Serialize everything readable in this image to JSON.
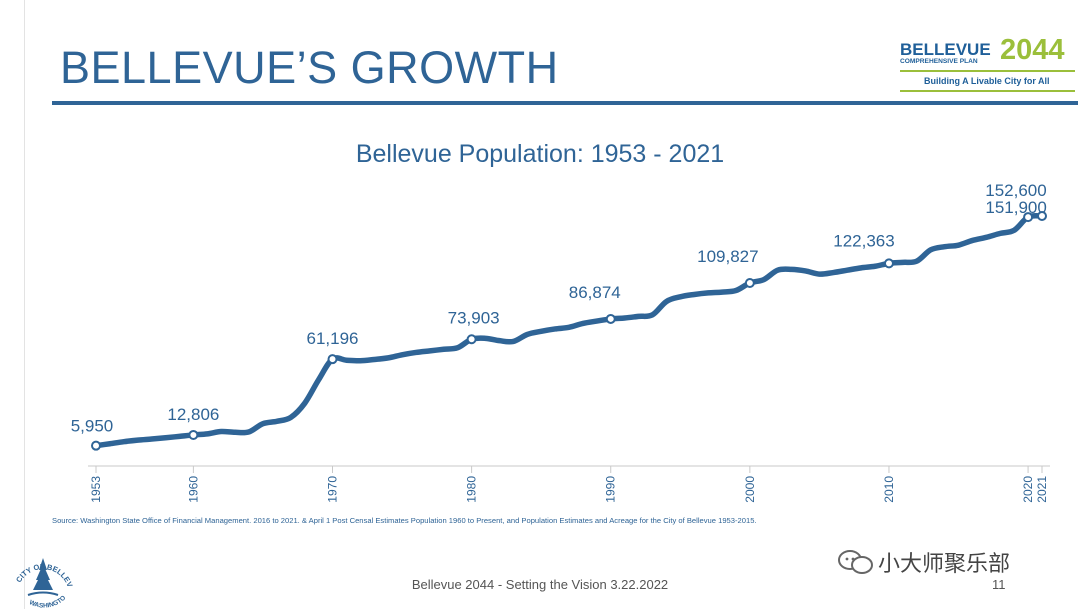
{
  "slide": {
    "title": "BELLEVUE’S GROWTH",
    "footer": "Bellevue 2044 - Setting the Vision 3.22.2022",
    "page_number": "11",
    "watermark": "小大师聚乐部"
  },
  "logo": {
    "name": "BELLEVUE",
    "year": "2044",
    "subtitle": "COMPREHENSIVE PLAN",
    "tagline": "Building A Livable City for All"
  },
  "seal": {
    "text_top": "CITY OF BELLEVUE",
    "text_bottom": "WASHINGTON"
  },
  "source_note": "Source: Washington State Office of Financial Management. 2016 to 2021. & April 1 Post Censal Estimates Population 1960 to Present, and Population Estimates and Acreage for the City of Bellevue 1953-2015.",
  "colors": {
    "primary": "#2f6496",
    "accent": "#9bbf3b",
    "text": "#555555"
  },
  "chart_data": {
    "type": "line",
    "title": "Bellevue Population: 1953 - 2021",
    "xlabel": "",
    "ylabel": "",
    "xlim": [
      1953,
      2021
    ],
    "ylim": [
      0,
      160000
    ],
    "x_ticks": [
      1953,
      1960,
      1970,
      1980,
      1990,
      2000,
      2010,
      2020,
      2021
    ],
    "grid": false,
    "series": [
      {
        "color": "#2f6496",
        "x": [
          1953,
          1954,
          1955,
          1956,
          1957,
          1958,
          1959,
          1960,
          1961,
          1962,
          1963,
          1964,
          1965,
          1966,
          1967,
          1968,
          1969,
          1970,
          1971,
          1972,
          1973,
          1974,
          1975,
          1976,
          1977,
          1978,
          1979,
          1980,
          1981,
          1982,
          1983,
          1984,
          1985,
          1986,
          1987,
          1988,
          1989,
          1990,
          1991,
          1992,
          1993,
          1994,
          1995,
          1996,
          1997,
          1998,
          1999,
          2000,
          2001,
          2002,
          2003,
          2004,
          2005,
          2006,
          2007,
          2008,
          2009,
          2010,
          2011,
          2012,
          2013,
          2014,
          2015,
          2016,
          2017,
          2018,
          2019,
          2020,
          2021
        ],
        "y": [
          5950,
          7200,
          8500,
          9500,
          10200,
          11000,
          11900,
          12806,
          13500,
          15000,
          14500,
          14800,
          20000,
          21500,
          24000,
          33000,
          48000,
          61196,
          60500,
          60200,
          61000,
          62000,
          64000,
          65500,
          66500,
          67500,
          68500,
          73903,
          74500,
          73000,
          72500,
          77000,
          79000,
          80500,
          81500,
          84000,
          85500,
          86874,
          87500,
          88500,
          89500,
          98000,
          101000,
          102500,
          103500,
          104000,
          105000,
          109827,
          112000,
          118000,
          118500,
          117500,
          115500,
          116500,
          118000,
          119500,
          120500,
          122363,
          123000,
          123800,
          131000,
          133000,
          134000,
          137000,
          139000,
          141500,
          143500,
          151900,
          152600
        ]
      }
    ],
    "labeled_points": [
      {
        "x": 1953,
        "y": 5950,
        "label": "5,950"
      },
      {
        "x": 1960,
        "y": 12806,
        "label": "12,806"
      },
      {
        "x": 1970,
        "y": 61196,
        "label": "61,196"
      },
      {
        "x": 1980,
        "y": 73903,
        "label": "73,903"
      },
      {
        "x": 1990,
        "y": 86874,
        "label": "86,874"
      },
      {
        "x": 2000,
        "y": 109827,
        "label": "109,827"
      },
      {
        "x": 2010,
        "y": 122363,
        "label": "122,363"
      },
      {
        "x": 2020,
        "y": 151900,
        "label": "151,900"
      },
      {
        "x": 2021,
        "y": 152600,
        "label": "152,600"
      }
    ]
  }
}
